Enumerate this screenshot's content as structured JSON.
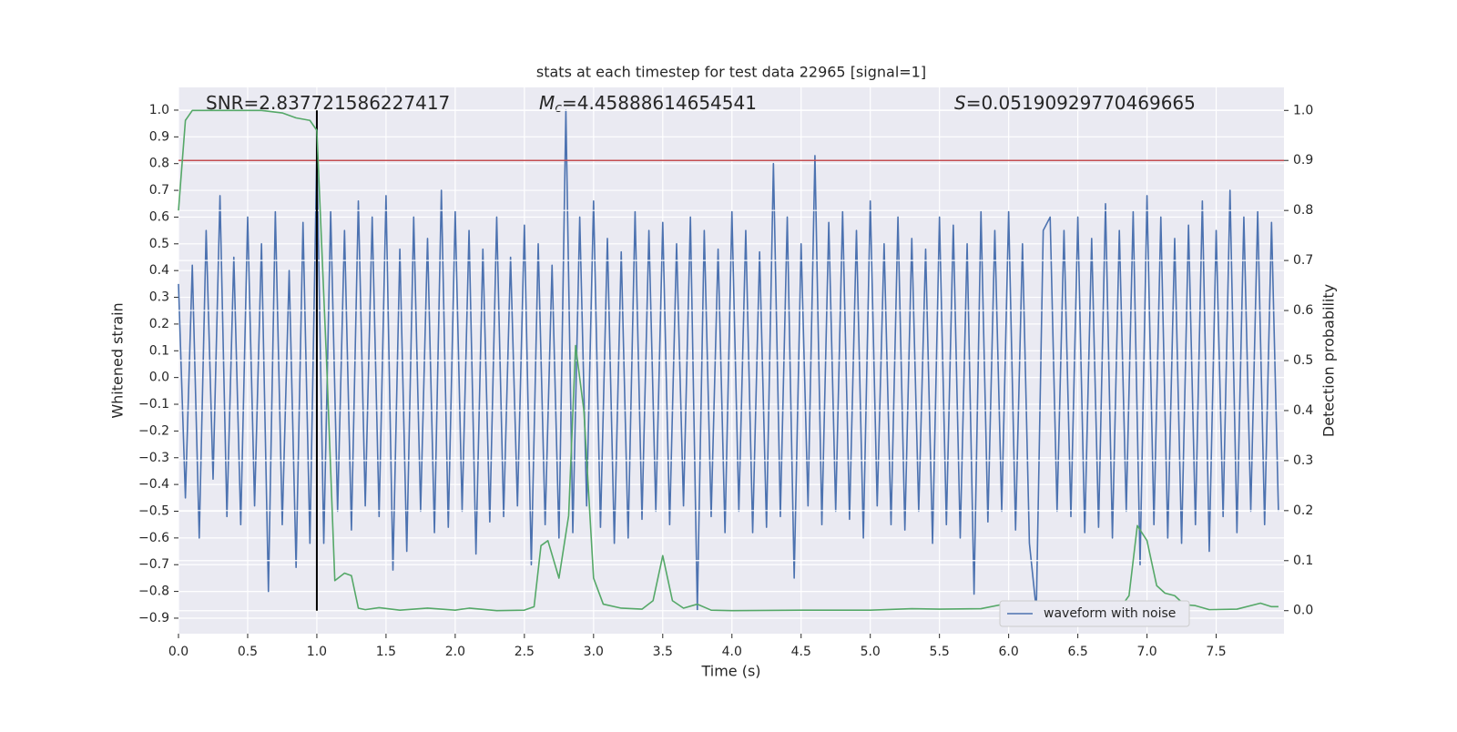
{
  "chart_data": {
    "type": "line",
    "title": "stats at each timestep for test data 22965 [signal=1]",
    "xlabel": "Time (s)",
    "ylabel": "Whitened strain",
    "y2label": "Detection probability",
    "annotations": [
      {
        "text": "SNR=2.837721586227417"
      },
      {
        "italic": "M",
        "sub": "c",
        "text": "=4.45888614654541"
      },
      {
        "italic": "S",
        "text": "=0.05190929770469665"
      }
    ],
    "xlim": [
      0,
      7.99
    ],
    "ylim": [
      -0.958,
      1.085
    ],
    "y2lim": [
      -0.046,
      1.046
    ],
    "xticks": [
      {
        "value": 0,
        "label": "0.0"
      },
      0.5,
      {
        "value": 1,
        "label": "1.0"
      },
      1.5,
      {
        "value": 2,
        "label": "2.0"
      },
      2.5,
      {
        "value": 3,
        "label": "3.0"
      },
      3.5,
      {
        "value": 4,
        "label": "4.0"
      },
      4.5,
      {
        "value": 5,
        "label": "5.0"
      },
      5.5,
      {
        "value": 6,
        "label": "6.0"
      },
      6.5,
      {
        "value": 7,
        "label": "7.0"
      },
      7.5
    ],
    "yticks": [
      {
        "value": -0.9,
        "label": "−0.9"
      },
      {
        "value": -0.8,
        "label": "−0.8"
      },
      {
        "value": -0.7,
        "label": "−0.7"
      },
      {
        "value": -0.6,
        "label": "−0.6"
      },
      {
        "value": -0.5,
        "label": "−0.5"
      },
      {
        "value": -0.4,
        "label": "−0.4"
      },
      {
        "value": -0.3,
        "label": "−0.3"
      },
      {
        "value": -0.2,
        "label": "−0.2"
      },
      {
        "value": -0.1,
        "label": "−0.1"
      },
      {
        "value": 0,
        "label": "0.0"
      },
      0.1,
      0.2,
      0.3,
      0.4,
      0.5,
      0.6,
      0.7,
      0.8,
      0.9,
      {
        "value": 1,
        "label": "1.0"
      }
    ],
    "y2ticks": [
      {
        "value": 0,
        "label": "0.0"
      },
      0.1,
      0.2,
      0.3,
      0.4,
      0.5,
      0.6,
      0.7,
      0.8,
      0.9,
      {
        "value": 1,
        "label": "1.0"
      }
    ],
    "grid": true,
    "legend": "lower right",
    "hline": {
      "y2": 0.9,
      "color": "#c44e52"
    },
    "vline": {
      "x": 1.0,
      "y2range": [
        0,
        1
      ],
      "color": "#000000"
    },
    "series": [
      {
        "name": "waveform with noise",
        "color": "#4c72b0",
        "x": [
          0,
          0.05,
          0.1,
          0.15,
          0.2,
          0.25,
          0.3,
          0.35,
          0.4,
          0.45,
          0.5,
          0.55,
          0.6,
          0.65,
          0.7,
          0.75,
          0.8,
          0.85,
          0.9,
          0.95,
          1,
          1.05,
          1.1,
          1.15,
          1.2,
          1.25,
          1.3,
          1.35,
          1.4,
          1.45,
          1.5,
          1.55,
          1.6,
          1.65,
          1.7,
          1.75,
          1.8,
          1.85,
          1.9,
          1.95,
          2,
          2.05,
          2.1,
          2.15,
          2.2,
          2.25,
          2.3,
          2.35,
          2.4,
          2.45,
          2.5,
          2.55,
          2.6,
          2.65,
          2.7,
          2.75,
          2.8,
          2.85,
          2.9,
          2.95,
          3,
          3.05,
          3.1,
          3.15,
          3.2,
          3.25,
          3.3,
          3.35,
          3.4,
          3.45,
          3.5,
          3.55,
          3.6,
          3.65,
          3.7,
          3.75,
          3.8,
          3.85,
          3.9,
          3.95,
          4,
          4.05,
          4.1,
          4.15,
          4.2,
          4.25,
          4.3,
          4.35,
          4.4,
          4.45,
          4.5,
          4.55,
          4.6,
          4.65,
          4.7,
          4.75,
          4.8,
          4.85,
          4.9,
          4.95,
          5,
          5.05,
          5.1,
          5.15,
          5.2,
          5.25,
          5.3,
          5.35,
          5.4,
          5.45,
          5.5,
          5.55,
          5.6,
          5.65,
          5.7,
          5.75,
          5.8,
          5.85,
          5.9,
          5.95,
          6,
          6.05,
          6.1,
          6.15,
          6.2,
          6.25,
          6.3,
          6.35,
          6.4,
          6.45,
          6.5,
          6.55,
          6.6,
          6.65,
          6.7,
          6.75,
          6.8,
          6.85,
          6.9,
          6.95,
          7,
          7.05,
          7.1,
          7.15,
          7.2,
          7.25,
          7.3,
          7.35,
          7.4,
          7.45,
          7.5,
          7.55,
          7.6,
          7.65,
          7.7,
          7.75,
          7.8,
          7.85,
          7.9,
          7.95
        ],
        "values": [
          0.35,
          -0.45,
          0.42,
          -0.6,
          0.55,
          -0.38,
          0.68,
          -0.52,
          0.45,
          -0.55,
          0.6,
          -0.48,
          0.5,
          -0.8,
          0.62,
          -0.55,
          0.4,
          -0.71,
          0.58,
          -0.62,
          0.85,
          -0.62,
          0.62,
          -0.5,
          0.55,
          -0.57,
          0.66,
          -0.48,
          0.6,
          -0.52,
          0.68,
          -0.72,
          0.48,
          -0.65,
          0.6,
          -0.5,
          0.52,
          -0.58,
          0.7,
          -0.56,
          0.62,
          -0.5,
          0.55,
          -0.66,
          0.48,
          -0.54,
          0.6,
          -0.52,
          0.45,
          -0.48,
          0.57,
          -0.7,
          0.5,
          -0.55,
          0.42,
          -0.6,
          1.0,
          -0.58,
          0.6,
          -0.48,
          0.66,
          -0.56,
          0.52,
          -0.62,
          0.47,
          -0.6,
          0.62,
          -0.53,
          0.55,
          -0.5,
          0.58,
          -0.55,
          0.5,
          -0.48,
          0.6,
          -0.87,
          0.55,
          -0.52,
          0.48,
          -0.58,
          0.62,
          -0.5,
          0.55,
          -0.58,
          0.47,
          -0.56,
          0.8,
          -0.52,
          0.6,
          -0.75,
          0.5,
          -0.48,
          0.83,
          -0.55,
          0.58,
          -0.5,
          0.62,
          -0.53,
          0.55,
          -0.6,
          0.66,
          -0.48,
          0.5,
          -0.55,
          0.6,
          -0.57,
          0.52,
          -0.5,
          0.48,
          -0.62,
          0.6,
          -0.55,
          0.57,
          -0.6,
          0.5,
          -0.81,
          0.62,
          -0.54,
          0.55,
          -0.5,
          0.62,
          -0.57,
          0.5,
          -0.62,
          -0.87,
          0.55,
          0.6,
          -0.5,
          0.55,
          -0.52,
          0.6,
          -0.58,
          0.52,
          -0.56,
          0.65,
          -0.6,
          0.55,
          -0.5,
          0.62,
          -0.7,
          0.68,
          -0.55,
          0.6,
          -0.6,
          0.52,
          -0.62,
          0.57,
          -0.55,
          0.66,
          -0.65,
          0.55,
          -0.52,
          0.7,
          -0.58,
          0.6,
          -0.5,
          0.62,
          -0.55,
          0.58,
          -0.5
        ]
      },
      {
        "color": "#55a868",
        "axis": "y2",
        "x": [
          0,
          0.05,
          0.1,
          0.6,
          0.75,
          0.85,
          0.95,
          1.0,
          1.07,
          1.13,
          1.2,
          1.25,
          1.3,
          1.35,
          1.45,
          1.6,
          1.8,
          2.0,
          2.1,
          2.3,
          2.5,
          2.57,
          2.62,
          2.67,
          2.75,
          2.82,
          2.87,
          2.93,
          3.0,
          3.07,
          3.2,
          3.35,
          3.43,
          3.5,
          3.57,
          3.65,
          3.75,
          3.85,
          4.0,
          4.5,
          5.0,
          5.3,
          5.5,
          5.8,
          6.0,
          6.08,
          6.12,
          6.2,
          6.38,
          6.5,
          6.8,
          6.87,
          6.93,
          7.0,
          7.07,
          7.13,
          7.2,
          7.27,
          7.35,
          7.45,
          7.65,
          7.82,
          7.9,
          7.95
        ],
        "values": [
          0.8,
          0.98,
          1.0,
          1.0,
          0.995,
          0.985,
          0.98,
          0.96,
          0.5,
          0.06,
          0.075,
          0.07,
          0.005,
          0.002,
          0.006,
          0.001,
          0.005,
          0.001,
          0.005,
          0,
          0.001,
          0.008,
          0.13,
          0.14,
          0.065,
          0.19,
          0.53,
          0.4,
          0.065,
          0.013,
          0.005,
          0.003,
          0.02,
          0.11,
          0.02,
          0.005,
          0.013,
          0.001,
          0,
          0.001,
          0.001,
          0.004,
          0.003,
          0.004,
          0.015,
          0.018,
          0.005,
          0.002,
          0.015,
          0.006,
          0.003,
          0.03,
          0.17,
          0.14,
          0.05,
          0.035,
          0.03,
          0.012,
          0.01,
          0.002,
          0.003,
          0.015,
          0.008,
          0.008
        ]
      }
    ]
  }
}
